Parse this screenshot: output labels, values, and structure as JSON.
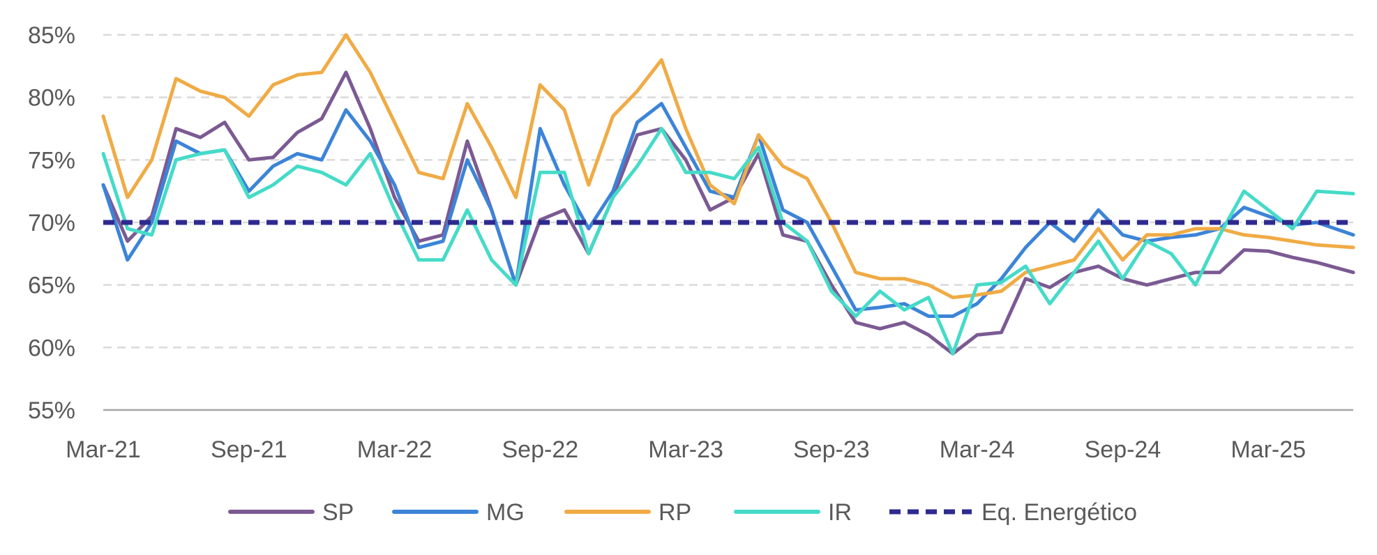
{
  "chart_data": {
    "type": "line",
    "title": "",
    "xlabel": "",
    "ylabel": "",
    "x_range": [
      "2021-03",
      "2025-06"
    ],
    "ylim": [
      55,
      85
    ],
    "y_ticks": [
      55,
      60,
      65,
      70,
      75,
      80,
      85
    ],
    "y_tick_labels": [
      "55%",
      "60%",
      "65%",
      "70%",
      "75%",
      "80%",
      "85%"
    ],
    "x_ticks": [
      "2021-03",
      "2021-09",
      "2022-03",
      "2022-09",
      "2023-03",
      "2023-09",
      "2024-03",
      "2024-09",
      "2025-03"
    ],
    "x_tick_labels": [
      "Mar-21",
      "Sep-21",
      "Mar-22",
      "Sep-22",
      "Mar-23",
      "Sep-23",
      "Mar-24",
      "Sep-24",
      "Mar-25"
    ],
    "grid": "horizontal dashed",
    "legend_position": "bottom",
    "series": [
      {
        "name": "SP",
        "color": "#7b5a93",
        "style": "solid",
        "points": [
          [
            "2021-03",
            73.0
          ],
          [
            "2021-04",
            68.5
          ],
          [
            "2021-05",
            70.5
          ],
          [
            "2021-06",
            77.5
          ],
          [
            "2021-07",
            76.8
          ],
          [
            "2021-08",
            78.0
          ],
          [
            "2021-09",
            75.0
          ],
          [
            "2021-10",
            75.2
          ],
          [
            "2021-11",
            77.2
          ],
          [
            "2021-12",
            78.3
          ],
          [
            "2022-01",
            82.0
          ],
          [
            "2022-02",
            77.5
          ],
          [
            "2022-03",
            72.0
          ],
          [
            "2022-04",
            68.5
          ],
          [
            "2022-05",
            69.0
          ],
          [
            "2022-06",
            76.5
          ],
          [
            "2022-07",
            71.0
          ],
          [
            "2022-08",
            65.0
          ],
          [
            "2022-09",
            70.2
          ],
          [
            "2022-10",
            71.0
          ],
          [
            "2022-11",
            67.5
          ],
          [
            "2022-12",
            72.0
          ],
          [
            "2023-01",
            77.0
          ],
          [
            "2023-02",
            77.5
          ],
          [
            "2023-03",
            75.0
          ],
          [
            "2023-04",
            71.0
          ],
          [
            "2023-05",
            72.0
          ],
          [
            "2023-06",
            75.5
          ],
          [
            "2023-07",
            69.0
          ],
          [
            "2023-08",
            68.5
          ],
          [
            "2023-09",
            65.0
          ],
          [
            "2023-10",
            62.0
          ],
          [
            "2023-11",
            61.5
          ],
          [
            "2023-12",
            62.0
          ],
          [
            "2024-01",
            61.0
          ],
          [
            "2024-02",
            59.5
          ],
          [
            "2024-03",
            61.0
          ],
          [
            "2024-04",
            61.2
          ],
          [
            "2024-05",
            65.5
          ],
          [
            "2024-06",
            64.8
          ],
          [
            "2024-07",
            66.0
          ],
          [
            "2024-08",
            66.5
          ],
          [
            "2024-09",
            65.5
          ],
          [
            "2024-10",
            65.0
          ],
          [
            "2024-11",
            65.5
          ],
          [
            "2024-12",
            66.0
          ],
          [
            "2025-01",
            66.0
          ],
          [
            "2025-02",
            67.8
          ],
          [
            "2025-03",
            67.7
          ],
          [
            "2025-04",
            67.2
          ],
          [
            "2025-05",
            66.8
          ],
          [
            "2025-06",
            66.0
          ]
        ]
      },
      {
        "name": "MG",
        "color": "#3c84d8",
        "style": "solid",
        "points": [
          [
            "2021-03",
            73.0
          ],
          [
            "2021-04",
            67.0
          ],
          [
            "2021-05",
            70.0
          ],
          [
            "2021-06",
            76.5
          ],
          [
            "2021-07",
            75.5
          ],
          [
            "2021-08",
            75.8
          ],
          [
            "2021-09",
            72.5
          ],
          [
            "2021-10",
            74.5
          ],
          [
            "2021-11",
            75.5
          ],
          [
            "2021-12",
            75.0
          ],
          [
            "2022-01",
            79.0
          ],
          [
            "2022-02",
            76.5
          ],
          [
            "2022-03",
            73.0
          ],
          [
            "2022-04",
            68.0
          ],
          [
            "2022-05",
            68.5
          ],
          [
            "2022-06",
            75.0
          ],
          [
            "2022-07",
            71.0
          ],
          [
            "2022-08",
            65.0
          ],
          [
            "2022-09",
            77.5
          ],
          [
            "2022-10",
            73.0
          ],
          [
            "2022-11",
            69.5
          ],
          [
            "2022-12",
            72.5
          ],
          [
            "2023-01",
            78.0
          ],
          [
            "2023-02",
            79.5
          ],
          [
            "2023-03",
            76.0
          ],
          [
            "2023-04",
            72.5
          ],
          [
            "2023-05",
            72.0
          ],
          [
            "2023-06",
            77.0
          ],
          [
            "2023-07",
            71.0
          ],
          [
            "2023-08",
            70.0
          ],
          [
            "2023-09",
            66.5
          ],
          [
            "2023-10",
            63.0
          ],
          [
            "2023-11",
            63.2
          ],
          [
            "2023-12",
            63.5
          ],
          [
            "2024-01",
            62.5
          ],
          [
            "2024-02",
            62.5
          ],
          [
            "2024-03",
            63.5
          ],
          [
            "2024-04",
            65.5
          ],
          [
            "2024-05",
            68.0
          ],
          [
            "2024-06",
            70.0
          ],
          [
            "2024-07",
            68.5
          ],
          [
            "2024-08",
            71.0
          ],
          [
            "2024-09",
            69.0
          ],
          [
            "2024-10",
            68.5
          ],
          [
            "2024-11",
            68.8
          ],
          [
            "2024-12",
            69.0
          ],
          [
            "2025-01",
            69.5
          ],
          [
            "2025-02",
            71.2
          ],
          [
            "2025-03",
            70.5
          ],
          [
            "2025-04",
            69.8
          ],
          [
            "2025-05",
            70.0
          ],
          [
            "2025-06",
            69.0
          ]
        ]
      },
      {
        "name": "RP",
        "color": "#f0ab45",
        "style": "solid",
        "points": [
          [
            "2021-03",
            78.5
          ],
          [
            "2021-04",
            72.0
          ],
          [
            "2021-05",
            75.0
          ],
          [
            "2021-06",
            81.5
          ],
          [
            "2021-07",
            80.5
          ],
          [
            "2021-08",
            80.0
          ],
          [
            "2021-09",
            78.5
          ],
          [
            "2021-10",
            81.0
          ],
          [
            "2021-11",
            81.8
          ],
          [
            "2021-12",
            82.0
          ],
          [
            "2022-01",
            85.0
          ],
          [
            "2022-02",
            82.0
          ],
          [
            "2022-03",
            78.0
          ],
          [
            "2022-04",
            74.0
          ],
          [
            "2022-05",
            73.5
          ],
          [
            "2022-06",
            79.5
          ],
          [
            "2022-07",
            76.0
          ],
          [
            "2022-08",
            72.0
          ],
          [
            "2022-09",
            81.0
          ],
          [
            "2022-10",
            79.0
          ],
          [
            "2022-11",
            73.0
          ],
          [
            "2022-12",
            78.5
          ],
          [
            "2023-01",
            80.5
          ],
          [
            "2023-02",
            83.0
          ],
          [
            "2023-03",
            77.5
          ],
          [
            "2023-04",
            73.0
          ],
          [
            "2023-05",
            71.5
          ],
          [
            "2023-06",
            77.0
          ],
          [
            "2023-07",
            74.5
          ],
          [
            "2023-08",
            73.5
          ],
          [
            "2023-09",
            70.0
          ],
          [
            "2023-10",
            66.0
          ],
          [
            "2023-11",
            65.5
          ],
          [
            "2023-12",
            65.5
          ],
          [
            "2024-01",
            65.0
          ],
          [
            "2024-02",
            64.0
          ],
          [
            "2024-03",
            64.2
          ],
          [
            "2024-04",
            64.5
          ],
          [
            "2024-05",
            66.0
          ],
          [
            "2024-06",
            66.5
          ],
          [
            "2024-07",
            67.0
          ],
          [
            "2024-08",
            69.5
          ],
          [
            "2024-09",
            67.0
          ],
          [
            "2024-10",
            69.0
          ],
          [
            "2024-11",
            69.0
          ],
          [
            "2024-12",
            69.5
          ],
          [
            "2025-01",
            69.5
          ],
          [
            "2025-02",
            69.0
          ],
          [
            "2025-03",
            68.8
          ],
          [
            "2025-04",
            68.5
          ],
          [
            "2025-05",
            68.2
          ],
          [
            "2025-06",
            68.0
          ]
        ]
      },
      {
        "name": "IR",
        "color": "#45dbc8",
        "style": "solid",
        "points": [
          [
            "2021-03",
            75.5
          ],
          [
            "2021-04",
            69.5
          ],
          [
            "2021-05",
            69.0
          ],
          [
            "2021-06",
            75.0
          ],
          [
            "2021-07",
            75.5
          ],
          [
            "2021-08",
            75.8
          ],
          [
            "2021-09",
            72.0
          ],
          [
            "2021-10",
            73.0
          ],
          [
            "2021-11",
            74.5
          ],
          [
            "2021-12",
            74.0
          ],
          [
            "2022-01",
            73.0
          ],
          [
            "2022-02",
            75.5
          ],
          [
            "2022-03",
            71.0
          ],
          [
            "2022-04",
            67.0
          ],
          [
            "2022-05",
            67.0
          ],
          [
            "2022-06",
            71.0
          ],
          [
            "2022-07",
            67.0
          ],
          [
            "2022-08",
            65.0
          ],
          [
            "2022-09",
            74.0
          ],
          [
            "2022-10",
            74.0
          ],
          [
            "2022-11",
            67.5
          ],
          [
            "2022-12",
            72.0
          ],
          [
            "2023-01",
            74.5
          ],
          [
            "2023-02",
            77.5
          ],
          [
            "2023-03",
            74.0
          ],
          [
            "2023-04",
            74.0
          ],
          [
            "2023-05",
            73.5
          ],
          [
            "2023-06",
            76.0
          ],
          [
            "2023-07",
            70.0
          ],
          [
            "2023-08",
            68.5
          ],
          [
            "2023-09",
            64.5
          ],
          [
            "2023-10",
            62.5
          ],
          [
            "2023-11",
            64.5
          ],
          [
            "2023-12",
            63.0
          ],
          [
            "2024-01",
            64.0
          ],
          [
            "2024-02",
            59.5
          ],
          [
            "2024-03",
            65.0
          ],
          [
            "2024-04",
            65.2
          ],
          [
            "2024-05",
            66.5
          ],
          [
            "2024-06",
            63.5
          ],
          [
            "2024-07",
            66.0
          ],
          [
            "2024-08",
            68.5
          ],
          [
            "2024-09",
            65.5
          ],
          [
            "2024-10",
            68.5
          ],
          [
            "2024-11",
            67.5
          ],
          [
            "2024-12",
            65.0
          ],
          [
            "2025-01",
            69.0
          ],
          [
            "2025-02",
            72.5
          ],
          [
            "2025-03",
            71.0
          ],
          [
            "2025-04",
            69.5
          ],
          [
            "2025-05",
            72.5
          ],
          [
            "2025-06",
            72.3
          ]
        ]
      },
      {
        "name": "Eq. Energético",
        "color": "#2e2a8f",
        "style": "dashed",
        "points": [
          [
            "2021-03",
            70.0
          ],
          [
            "2025-06",
            70.0
          ]
        ]
      }
    ]
  }
}
